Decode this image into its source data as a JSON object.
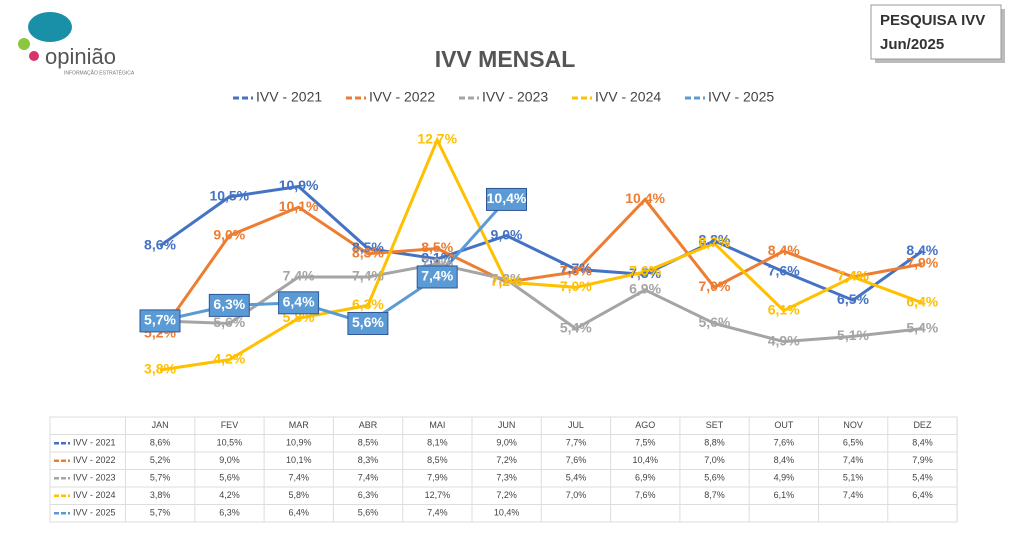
{
  "logo": {
    "name": "opinião",
    "tagline": "INFORMAÇÃO ESTRATÉGICA"
  },
  "badge": {
    "line1": "PESQUISA IVV",
    "line2": "Jun/2025"
  },
  "chart_data": {
    "type": "line",
    "title": "IVV MENSAL",
    "categories": [
      "JAN",
      "FEV",
      "MAR",
      "ABR",
      "MAI",
      "JUN",
      "JUL",
      "AGO",
      "SET",
      "OUT",
      "NOV",
      "DEZ"
    ],
    "series": [
      {
        "name": "IVV - 2021",
        "color": "#4472c4",
        "values": [
          8.6,
          10.5,
          10.9,
          8.5,
          8.1,
          9.0,
          7.7,
          7.5,
          8.8,
          7.6,
          6.5,
          8.4
        ],
        "value_labels": [
          "8,6%",
          "10,5%",
          "10,9%",
          "8,5%",
          "8,1%",
          "9,0%",
          "7,7%",
          "7,5%",
          "8,8%",
          "7,6%",
          "6,5%",
          "8,4%"
        ]
      },
      {
        "name": "IVV - 2022",
        "color": "#ed7d31",
        "values": [
          5.2,
          9.0,
          10.1,
          8.3,
          8.5,
          7.2,
          7.6,
          10.4,
          7.0,
          8.4,
          7.4,
          7.9
        ],
        "value_labels": [
          "5,2%",
          "9,0%",
          "10,1%",
          "8,3%",
          "8,5%",
          "7,2%",
          "7,6%",
          "10,4%",
          "7,0%",
          "8,4%",
          "7,4%",
          "7,9%"
        ]
      },
      {
        "name": "IVV - 2023",
        "color": "#a5a5a5",
        "values": [
          5.7,
          5.6,
          7.4,
          7.4,
          7.9,
          7.3,
          5.4,
          6.9,
          5.6,
          4.9,
          5.1,
          5.4
        ],
        "value_labels": [
          "5,7%",
          "5,6%",
          "7,4%",
          "7,4%",
          "7,9%",
          "7,3%",
          "5,4%",
          "6,9%",
          "5,6%",
          "4,9%",
          "5,1%",
          "5,4%"
        ]
      },
      {
        "name": "IVV - 2024",
        "color": "#ffc000",
        "values": [
          3.8,
          4.2,
          5.8,
          6.3,
          12.7,
          7.2,
          7.0,
          7.6,
          8.7,
          6.1,
          7.4,
          6.4
        ],
        "value_labels": [
          "3,8%",
          "4,2%",
          "5,8%",
          "6,3%",
          "12,7%",
          "7,2%",
          "7,0%",
          "7,6%",
          "8,7%",
          "6,1%",
          "7,4%",
          "6,4%"
        ]
      },
      {
        "name": "IVV - 2025",
        "color": "#5b9bd5",
        "values": [
          5.7,
          6.3,
          6.4,
          5.6,
          7.4,
          10.4,
          null,
          null,
          null,
          null,
          null,
          null
        ],
        "value_labels": [
          "5,7%",
          "6,3%",
          "6,4%",
          "5,6%",
          "7,4%",
          "10,4%",
          null,
          null,
          null,
          null,
          null,
          null
        ]
      }
    ],
    "legend": "top",
    "data_table": true
  }
}
